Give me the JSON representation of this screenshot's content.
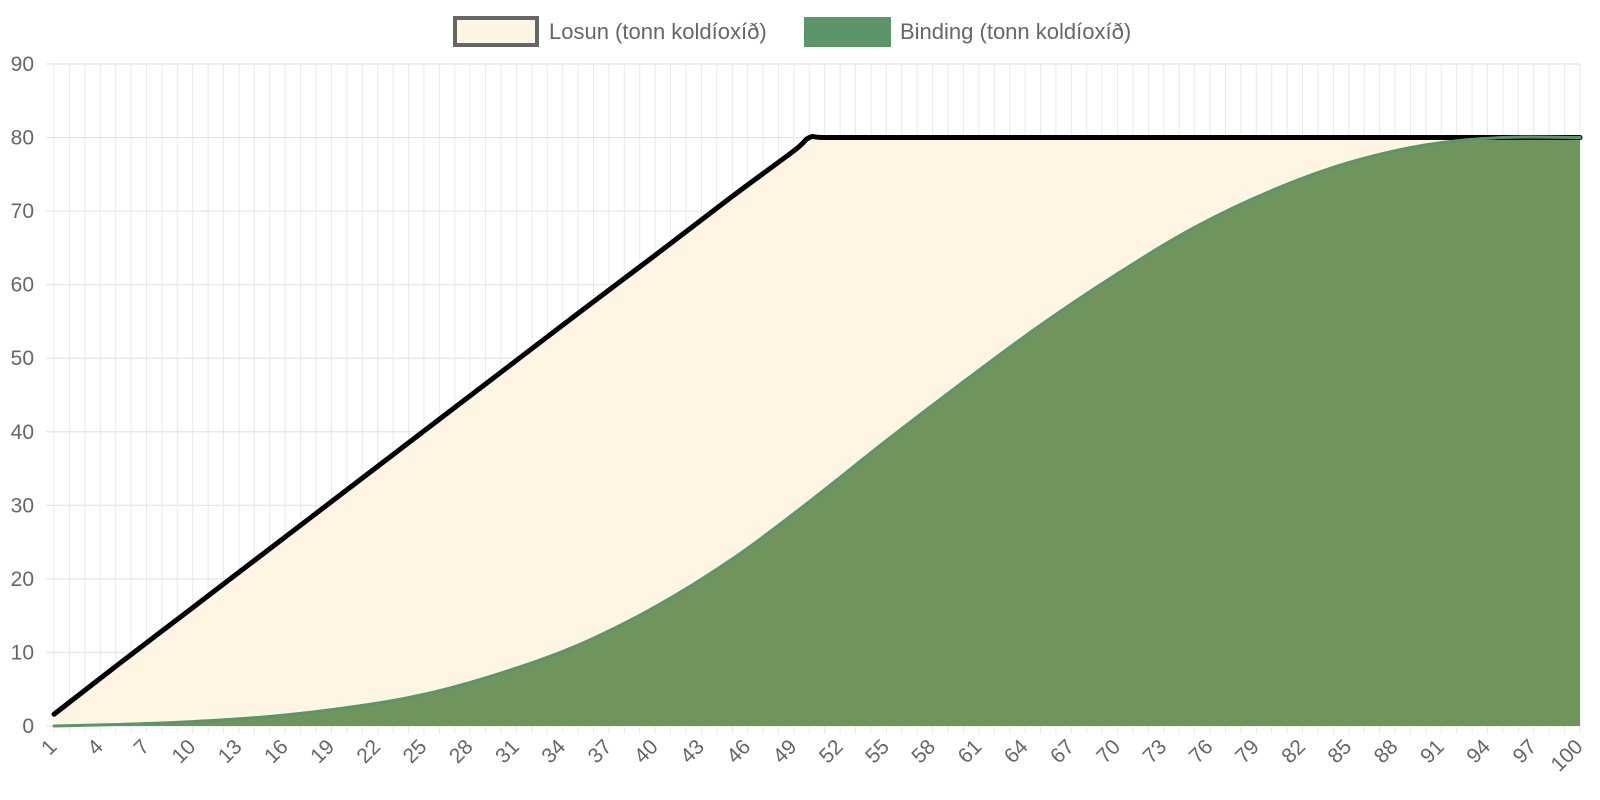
{
  "chart_data": {
    "type": "area",
    "title": "",
    "xlabel": "",
    "ylabel": "",
    "ylim": [
      0,
      90
    ],
    "y_ticks": [
      0,
      10,
      20,
      30,
      40,
      50,
      60,
      70,
      80,
      90
    ],
    "x_range": [
      1,
      100
    ],
    "x_tick_labels": [
      "1",
      "4",
      "7",
      "10",
      "13",
      "16",
      "19",
      "22",
      "25",
      "28",
      "31",
      "34",
      "37",
      "40",
      "43",
      "46",
      "49",
      "52",
      "55",
      "58",
      "61",
      "64",
      "67",
      "70",
      "73",
      "76",
      "79",
      "82",
      "85",
      "88",
      "91",
      "94",
      "97",
      "100"
    ],
    "grid": true,
    "legend_position": "top-center",
    "series": [
      {
        "name": "Losun (tonn koldíoxíð)",
        "fill_color": "#fff5e3",
        "line_color": "#000000",
        "legend_border_color": "#666666",
        "x": [
          1,
          5,
          10,
          15,
          20,
          25,
          30,
          35,
          40,
          45,
          49,
          50,
          51,
          55,
          60,
          65,
          70,
          75,
          80,
          85,
          90,
          95,
          100
        ],
        "values": [
          1.6,
          8.1,
          16.1,
          24.1,
          32.1,
          40.1,
          48.1,
          56.1,
          64.0,
          72.0,
          78.2,
          80,
          80,
          80,
          80,
          80,
          80,
          80,
          80,
          80,
          80,
          80,
          80
        ]
      },
      {
        "name": "Binding (tonn koldíoxíð)",
        "fill_color": "#6f955d",
        "line_color": "#5b9668",
        "legend_fill_color": "#5b9668",
        "x": [
          1,
          5,
          10,
          15,
          20,
          25,
          30,
          35,
          40,
          45,
          50,
          55,
          60,
          65,
          70,
          75,
          80,
          85,
          90,
          95,
          100
        ],
        "values": [
          0,
          0.2,
          0.6,
          1.3,
          2.5,
          4.3,
          7.2,
          11.0,
          16.2,
          22.7,
          30.5,
          38.8,
          46.8,
          54.5,
          61.5,
          67.8,
          72.8,
          76.6,
          79.0,
          80.0,
          80.0
        ]
      }
    ]
  }
}
